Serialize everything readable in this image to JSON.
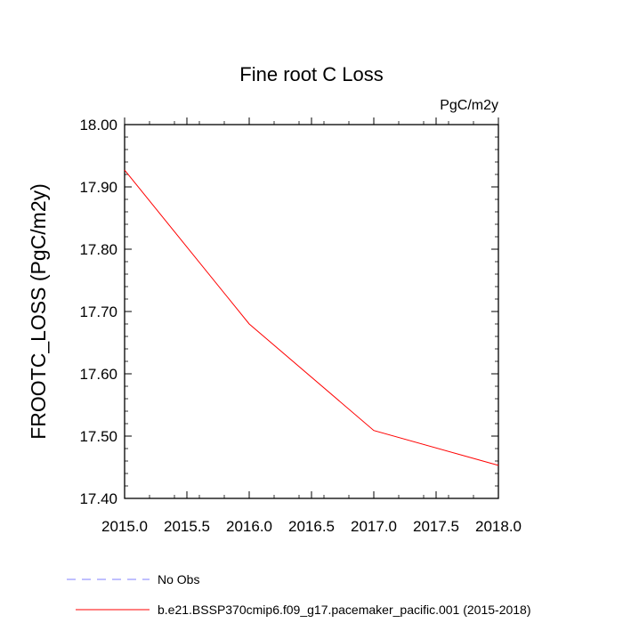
{
  "chart_data": {
    "type": "line",
    "title": "Fine root C Loss",
    "units_label": "PgC/m2y",
    "xlabel": "",
    "ylabel": "FROOTC_LOSS  (PgC/m2y)",
    "xlim": [
      2015.0,
      2018.0
    ],
    "ylim": [
      17.4,
      18.0
    ],
    "x_ticks": [
      "2015.0",
      "2015.5",
      "2016.0",
      "2016.5",
      "2017.0",
      "2017.5",
      "2018.0"
    ],
    "y_ticks": [
      "18.00",
      "17.90",
      "17.80",
      "17.70",
      "17.60",
      "17.50",
      "17.40"
    ],
    "grid": false,
    "legend_position": "bottom",
    "series": [
      {
        "name": "No Obs",
        "color": "#8080ff",
        "style": "dashed",
        "x": [],
        "y": []
      },
      {
        "name": "b.e21.BSSP370cmip6.f09_g17.pacemaker_pacific.001 (2015-2018)",
        "color": "#ff0000",
        "style": "solid",
        "x": [
          2015.0,
          2016.0,
          2017.0,
          2018.0
        ],
        "y": [
          17.927,
          17.68,
          17.509,
          17.453
        ]
      }
    ]
  }
}
